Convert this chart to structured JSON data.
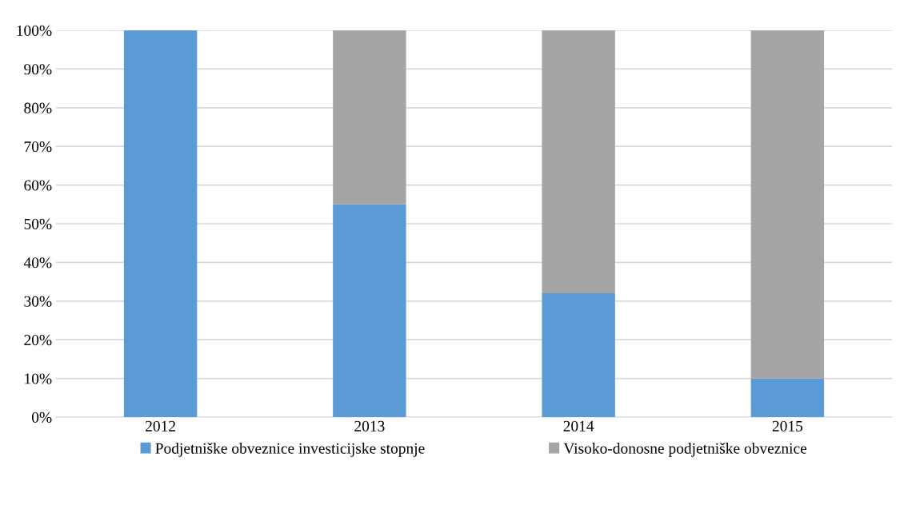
{
  "chart_data": {
    "type": "bar",
    "stacked": true,
    "categories": [
      "2012",
      "2013",
      "2014",
      "2015"
    ],
    "series": [
      {
        "name": "Podjetniške obveznice investicijske stopnje",
        "color": "#5b9bd5",
        "values": [
          100,
          55,
          32,
          10
        ]
      },
      {
        "name": "Visoko-donosne podjetniške obveznice",
        "color": "#a5a5a5",
        "values": [
          0,
          45,
          68,
          90
        ]
      }
    ],
    "ylim": [
      0,
      100
    ],
    "yticks": [
      {
        "value": 0,
        "label": "0%"
      },
      {
        "value": 10,
        "label": "10%"
      },
      {
        "value": 20,
        "label": "20%"
      },
      {
        "value": 30,
        "label": "30%"
      },
      {
        "value": 40,
        "label": "40%"
      },
      {
        "value": 50,
        "label": "50%"
      },
      {
        "value": 60,
        "label": "60%"
      },
      {
        "value": 70,
        "label": "70%"
      },
      {
        "value": 80,
        "label": "80%"
      },
      {
        "value": 90,
        "label": "90%"
      },
      {
        "value": 100,
        "label": "100%"
      }
    ],
    "grid": "y",
    "legend": "bottom"
  }
}
